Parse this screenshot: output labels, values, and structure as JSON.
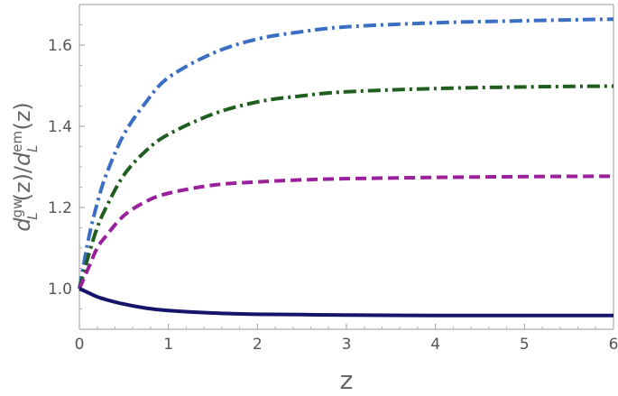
{
  "chart_data": {
    "type": "line",
    "xlabel": "z",
    "ylabel": {
      "base_d1": "d",
      "sub1": "L",
      "sup1": "gw",
      "mid": "(z)/",
      "base_d2": "d",
      "sub2": "L",
      "sup2": "em",
      "end": "(z)"
    },
    "xlim": [
      0,
      6
    ],
    "ylim": [
      0.9,
      1.7
    ],
    "x_ticks": [
      "0",
      "1",
      "2",
      "3",
      "4",
      "5",
      "6"
    ],
    "y_ticks": [
      "1.0",
      "1.2",
      "1.4",
      "1.6"
    ],
    "grid": false,
    "x": [
      0,
      0.1,
      0.2,
      0.3,
      0.5,
      0.75,
      1,
      1.5,
      2,
      2.5,
      3,
      4,
      5,
      6
    ],
    "series": [
      {
        "style": "dash-dot",
        "color": "#3a6fc4",
        "values": [
          1.0,
          1.12,
          1.21,
          1.28,
          1.38,
          1.46,
          1.52,
          1.58,
          1.615,
          1.633,
          1.645,
          1.655,
          1.66,
          1.664
        ]
      },
      {
        "style": "dash-dot",
        "color": "#1f5e1f",
        "values": [
          1.0,
          1.08,
          1.15,
          1.2,
          1.28,
          1.34,
          1.38,
          1.43,
          1.46,
          1.475,
          1.485,
          1.493,
          1.497,
          1.499
        ]
      },
      {
        "style": "dashed",
        "color": "#9a1f9a",
        "values": [
          1.0,
          1.05,
          1.1,
          1.13,
          1.18,
          1.215,
          1.235,
          1.255,
          1.263,
          1.268,
          1.271,
          1.274,
          1.276,
          1.277
        ]
      },
      {
        "style": "solid",
        "color": "#14146b",
        "values": [
          1.0,
          0.99,
          0.98,
          0.973,
          0.962,
          0.952,
          0.946,
          0.94,
          0.937,
          0.936,
          0.935,
          0.934,
          0.934,
          0.934
        ]
      }
    ]
  }
}
